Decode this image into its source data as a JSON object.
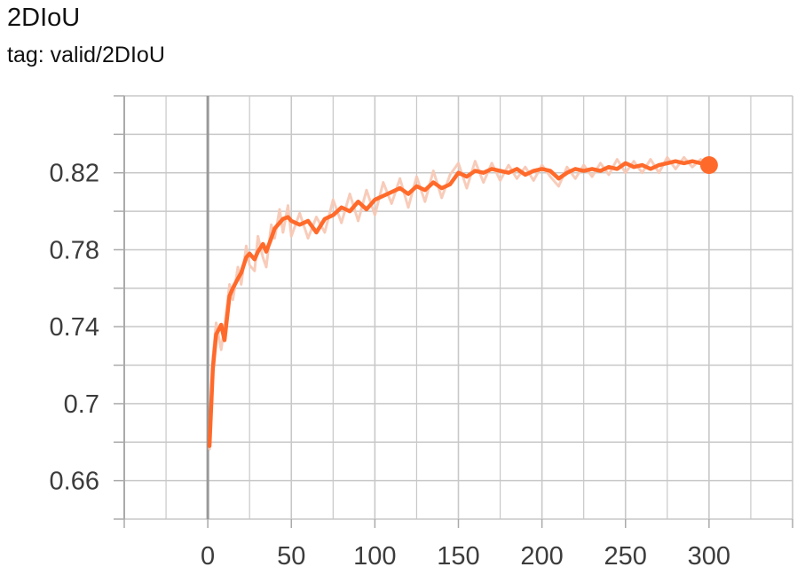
{
  "header": {
    "title": "2DIoU",
    "subtitle": "tag: valid/2DIoU"
  },
  "chart_data": {
    "type": "line",
    "title": "2DIoU",
    "subtitle": "tag: valid/2DIoU",
    "xlabel": "",
    "ylabel": "",
    "xlim": [
      -50,
      350
    ],
    "ylim": [
      0.64,
      0.86
    ],
    "x_ticks": [
      0,
      50,
      100,
      150,
      200,
      250,
      300
    ],
    "x_tick_labels": [
      "0",
      "50",
      "100",
      "150",
      "200",
      "250",
      "300"
    ],
    "y_ticks": [
      0.66,
      0.7,
      0.74,
      0.78,
      0.82
    ],
    "y_tick_labels": [
      "0.66",
      "0.7",
      "0.74",
      "0.78",
      "0.82"
    ],
    "grid": true,
    "colors": {
      "smoothed": "#ff6a2b",
      "raw": "#f7c6b3",
      "grid": "#c8c8c8",
      "zero_line": "#999999"
    },
    "series": [
      {
        "x": [
          1,
          3,
          5,
          8,
          10,
          13,
          15,
          18,
          20,
          23,
          25,
          28,
          30,
          33,
          35,
          38,
          40,
          43,
          45,
          48,
          50,
          55,
          60,
          65,
          70,
          75,
          80,
          85,
          90,
          95,
          100,
          105,
          110,
          115,
          120,
          125,
          130,
          135,
          140,
          145,
          150,
          155,
          160,
          165,
          170,
          175,
          180,
          185,
          190,
          195,
          200,
          205,
          210,
          215,
          220,
          225,
          230,
          235,
          240,
          245,
          250,
          255,
          260,
          265,
          270,
          275,
          280,
          285,
          290,
          295,
          300
        ],
        "values": [
          0.678,
          0.718,
          0.736,
          0.741,
          0.733,
          0.756,
          0.76,
          0.765,
          0.768,
          0.776,
          0.778,
          0.775,
          0.779,
          0.783,
          0.779,
          0.786,
          0.791,
          0.794,
          0.796,
          0.797,
          0.795,
          0.793,
          0.795,
          0.789,
          0.796,
          0.798,
          0.802,
          0.8,
          0.805,
          0.801,
          0.806,
          0.808,
          0.81,
          0.812,
          0.809,
          0.813,
          0.811,
          0.815,
          0.812,
          0.814,
          0.82,
          0.818,
          0.821,
          0.82,
          0.822,
          0.821,
          0.82,
          0.822,
          0.819,
          0.821,
          0.822,
          0.821,
          0.817,
          0.82,
          0.822,
          0.821,
          0.822,
          0.821,
          0.823,
          0.822,
          0.825,
          0.823,
          0.824,
          0.822,
          0.824,
          0.825,
          0.826,
          0.825,
          0.826,
          0.825,
          0.824
        ]
      },
      {
        "x": [
          1,
          3,
          5,
          8,
          10,
          13,
          15,
          18,
          20,
          23,
          25,
          28,
          30,
          33,
          35,
          38,
          40,
          43,
          45,
          48,
          50,
          55,
          60,
          65,
          70,
          75,
          80,
          85,
          90,
          95,
          100,
          105,
          110,
          115,
          120,
          125,
          130,
          135,
          140,
          145,
          150,
          155,
          160,
          165,
          170,
          175,
          180,
          185,
          190,
          195,
          200,
          205,
          210,
          215,
          220,
          225,
          230,
          235,
          240,
          245,
          250,
          255,
          260,
          265,
          270,
          275,
          280,
          285,
          290,
          295,
          300
        ],
        "values": [
          0.676,
          0.724,
          0.742,
          0.728,
          0.74,
          0.762,
          0.754,
          0.771,
          0.762,
          0.782,
          0.772,
          0.769,
          0.787,
          0.776,
          0.771,
          0.793,
          0.786,
          0.801,
          0.789,
          0.803,
          0.787,
          0.799,
          0.786,
          0.797,
          0.789,
          0.806,
          0.794,
          0.809,
          0.795,
          0.811,
          0.798,
          0.815,
          0.804,
          0.817,
          0.802,
          0.818,
          0.805,
          0.821,
          0.807,
          0.819,
          0.825,
          0.812,
          0.826,
          0.815,
          0.825,
          0.816,
          0.824,
          0.817,
          0.823,
          0.816,
          0.824,
          0.818,
          0.813,
          0.823,
          0.817,
          0.824,
          0.818,
          0.825,
          0.819,
          0.827,
          0.82,
          0.826,
          0.82,
          0.827,
          0.82,
          0.828,
          0.822,
          0.828,
          0.823,
          0.827,
          0.824
        ]
      }
    ]
  }
}
